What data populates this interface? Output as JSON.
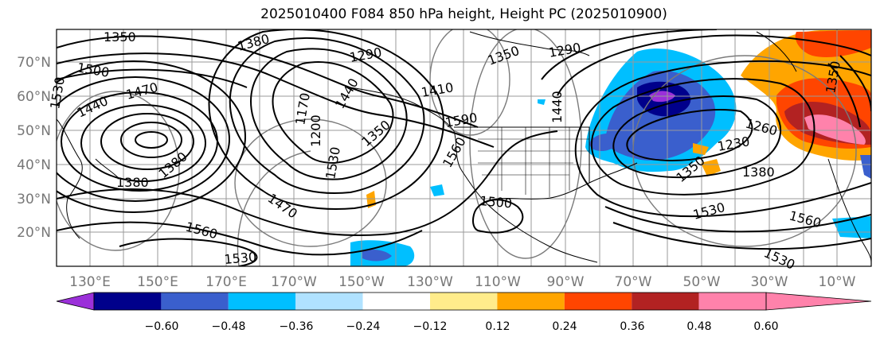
{
  "title": "2025010400 F084 850 hPa height, Height PC (2025010900)",
  "lat_labels": [
    "70°N",
    "60°N",
    "50°N",
    "40°N",
    "30°N",
    "20°N"
  ],
  "lon_labels": [
    "130°E",
    "150°E",
    "170°E",
    "170°W",
    "150°W",
    "130°W",
    "110°W",
    "90°W",
    "70°W",
    "50°W",
    "30°W",
    "10°W"
  ],
  "contour_labels": [
    "1350",
    "1380",
    "1500",
    "1530",
    "1470",
    "1440",
    "1380",
    "1380",
    "1290",
    "1170",
    "1200",
    "1350",
    "1530",
    "1470",
    "1410",
    "1440",
    "1560",
    "1530",
    "1590",
    "1500",
    "1560",
    "1350",
    "1290",
    "1440",
    "1260",
    "1230",
    "1380",
    "1350",
    "1530",
    "1560",
    "1530",
    "1350"
  ],
  "colorbar": {
    "ticks": [
      "−0.60",
      "−0.48",
      "−0.36",
      "−0.24",
      "−0.12",
      "0.12",
      "0.24",
      "0.36",
      "0.48",
      "0.60"
    ],
    "colors": [
      "#9b30d9",
      "#00008b",
      "#3a5fcd",
      "#00bfff",
      "#b0e2ff",
      "#ffffff",
      "#ffec8b",
      "#ffa500",
      "#ff4500",
      "#b22222",
      "#ff82ab",
      "#ff82ab"
    ]
  },
  "colors": {
    "negative_strong": "#3a5fcd",
    "negative_dark": "#00008b",
    "negative_light": "#00bfff",
    "positive_orange": "#ffa500",
    "positive_red": "#ff4500",
    "positive_pink": "#ff82ab"
  }
}
